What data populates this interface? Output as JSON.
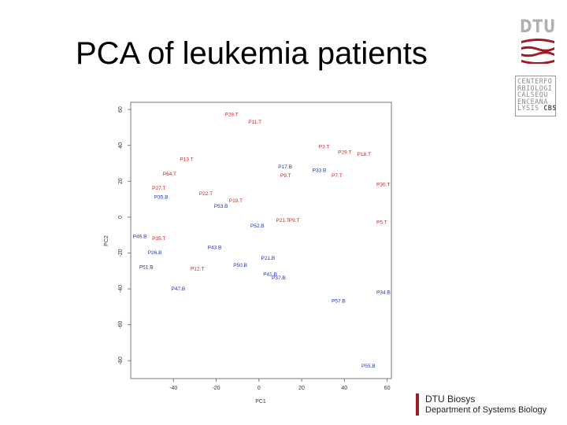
{
  "slide": {
    "title": "PCA of leukemia patients",
    "logo_text": "DTU",
    "cbs_lines": [
      "CENTERFO",
      "RBIOLOGI",
      "CALSEQU",
      "ENCEANA",
      "LYSIS"
    ],
    "cbs_tag": "CBS",
    "footer_line1": "DTU Biosys",
    "footer_line2": "Department of Systems Biology",
    "accent": "#9b1c23"
  },
  "chart_data": {
    "type": "scatter",
    "xlabel": "PC1",
    "ylabel": "PC2",
    "xlim": [
      -60,
      62
    ],
    "ylim": [
      -90,
      64
    ],
    "xticks": [
      -40,
      -20,
      0,
      20,
      40,
      60
    ],
    "yticks": [
      60,
      40,
      20,
      0,
      -20,
      -40,
      -60,
      -80
    ],
    "grid": false,
    "colors": {
      "T": "#cc2222",
      "B": "#2233aa"
    },
    "points": [
      {
        "label": "P28.T",
        "x": -16,
        "y": 57,
        "group": "T"
      },
      {
        "label": "P11.T",
        "x": -5,
        "y": 53,
        "group": "T"
      },
      {
        "label": "P3.T",
        "x": 28,
        "y": 39,
        "group": "T"
      },
      {
        "label": "P29.T",
        "x": 37,
        "y": 36,
        "group": "T"
      },
      {
        "label": "P18.T",
        "x": 46,
        "y": 35,
        "group": "T"
      },
      {
        "label": "P13.T",
        "x": -37,
        "y": 32,
        "group": "T"
      },
      {
        "label": "P17.B",
        "x": 9,
        "y": 28,
        "group": "B"
      },
      {
        "label": "P33.B",
        "x": 25,
        "y": 26,
        "group": "B"
      },
      {
        "label": "P64.T",
        "x": -45,
        "y": 24,
        "group": "T"
      },
      {
        "label": "P9.T",
        "x": 10,
        "y": 23,
        "group": "T"
      },
      {
        "label": "P7.T",
        "x": 34,
        "y": 23,
        "group": "T"
      },
      {
        "label": "P30.T",
        "x": 55,
        "y": 18,
        "group": "T"
      },
      {
        "label": "P27.T",
        "x": -50,
        "y": 16,
        "group": "T"
      },
      {
        "label": "P22.T",
        "x": -28,
        "y": 13,
        "group": "T"
      },
      {
        "label": "P35.B",
        "x": -49,
        "y": 11,
        "group": "B"
      },
      {
        "label": "P19.T",
        "x": -14,
        "y": 9,
        "group": "T"
      },
      {
        "label": "P53.B",
        "x": -21,
        "y": 6,
        "group": "B"
      },
      {
        "label": "P21.T",
        "x": 8,
        "y": -2,
        "group": "T"
      },
      {
        "label": "P9.T",
        "x": 14,
        "y": -2,
        "group": "T"
      },
      {
        "label": "P5.T",
        "x": 55,
        "y": -3,
        "group": "T"
      },
      {
        "label": "P52.B",
        "x": -4,
        "y": -5,
        "group": "B"
      },
      {
        "label": "P46.B",
        "x": -59,
        "y": -11,
        "group": "B"
      },
      {
        "label": "P35.T",
        "x": -50,
        "y": -12,
        "group": "T"
      },
      {
        "label": "P43.B",
        "x": -24,
        "y": -17,
        "group": "B"
      },
      {
        "label": "P26.B",
        "x": -52,
        "y": -20,
        "group": "B"
      },
      {
        "label": "P21.B",
        "x": 1,
        "y": -23,
        "group": "B"
      },
      {
        "label": "P50.B",
        "x": -12,
        "y": -27,
        "group": "B"
      },
      {
        "label": "P51.B",
        "x": -56,
        "y": -28,
        "group": "B"
      },
      {
        "label": "P12.T",
        "x": -32,
        "y": -29,
        "group": "T"
      },
      {
        "label": "P41.B",
        "x": 2,
        "y": -32,
        "group": "B"
      },
      {
        "label": "P37.B",
        "x": 6,
        "y": -34,
        "group": "B"
      },
      {
        "label": "P47.B",
        "x": -41,
        "y": -40,
        "group": "B"
      },
      {
        "label": "P34.B",
        "x": 55,
        "y": -42,
        "group": "B"
      },
      {
        "label": "P57.B",
        "x": 34,
        "y": -47,
        "group": "B"
      },
      {
        "label": "P55.B",
        "x": 48,
        "y": -83,
        "group": "B"
      }
    ]
  }
}
